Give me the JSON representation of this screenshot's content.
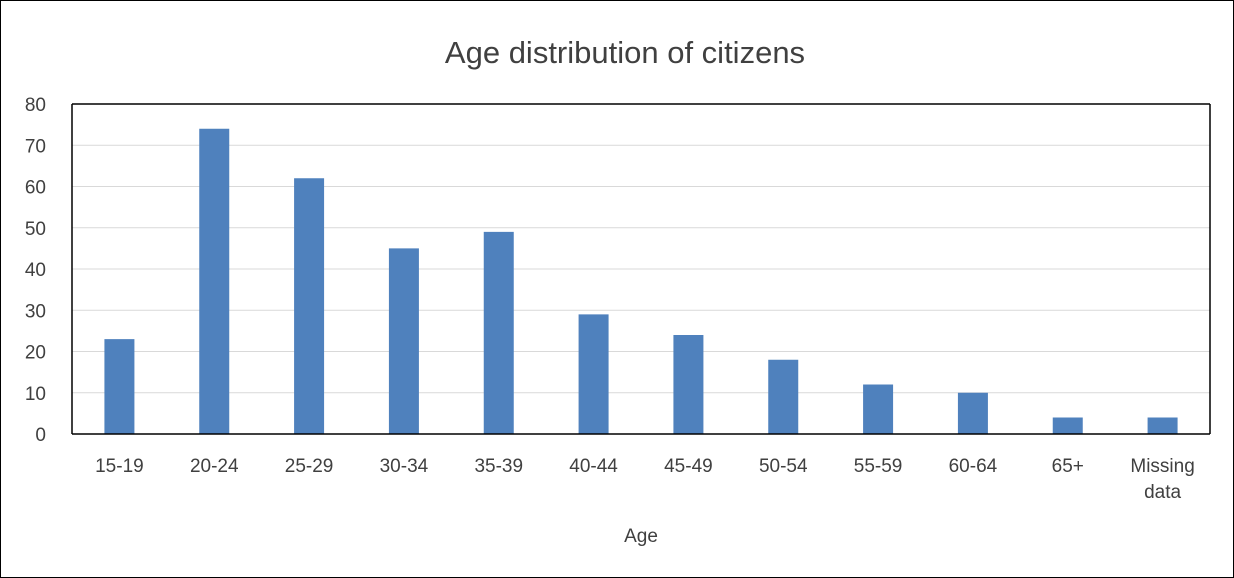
{
  "chart_data": {
    "type": "bar",
    "title": "Age distribution of citizens",
    "xlabel": "Age",
    "ylabel": "",
    "categories": [
      "15-19",
      "20-24",
      "25-29",
      "30-34",
      "35-39",
      "40-44",
      "45-49",
      "50-54",
      "55-59",
      "60-64",
      "65+",
      "Missing data"
    ],
    "values": [
      23,
      74,
      62,
      45,
      49,
      29,
      24,
      18,
      12,
      10,
      4,
      4
    ],
    "ylim": [
      0,
      80
    ],
    "yticks": [
      0,
      10,
      20,
      30,
      40,
      50,
      60,
      70,
      80
    ],
    "grid": true,
    "legend": "none",
    "colors": {
      "bar": "#4f81bd",
      "grid": "#d9d9d9",
      "axis": "#000000",
      "text": "#404040"
    }
  }
}
